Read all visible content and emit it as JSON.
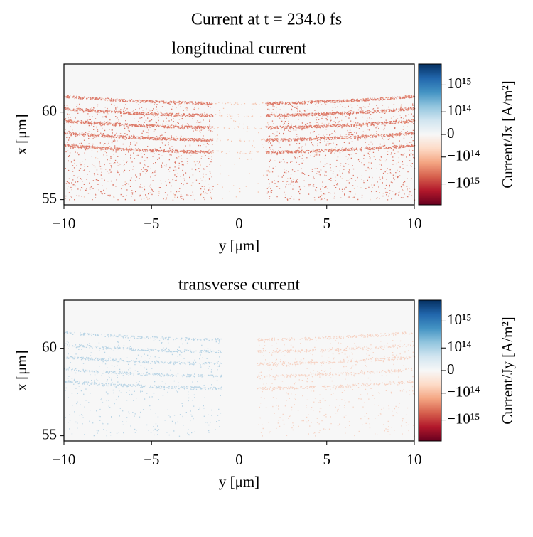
{
  "title": "Current at t = 234.0 fs",
  "chart_data": [
    {
      "type": "heatmap",
      "title": "longitudinal current",
      "xlabel": "y [μm]",
      "ylabel": "x [μm]",
      "xlim": [
        -10,
        10
      ],
      "xticks": [
        {
          "value": -10,
          "label": "−10"
        },
        {
          "value": -5,
          "label": "−5"
        },
        0,
        5,
        10
      ],
      "ylim": [
        54.7,
        62.75
      ],
      "yticks": [
        55,
        60
      ],
      "colormap": [
        "#67001f",
        "#b2182b",
        "#d6604d",
        "#f4a582",
        "#fddbc7",
        "#f7f7f7",
        "#d1e5f0",
        "#92c5de",
        "#4393c3",
        "#2166ac",
        "#053061"
      ],
      "colorbar": {
        "label": "Current/Jx [A/m²]",
        "scale": "symlog",
        "linthresh": 100000000000000.0,
        "lim": [
          -6000000000000000.0,
          6000000000000000.0
        ],
        "ticks": [
          {
            "value": -1000000000000000.0,
            "label": "−10¹⁵"
          },
          {
            "value": -100000000000000.0,
            "label": "−10¹⁴"
          },
          0,
          {
            "value": 100000000000000.0,
            "label": "10¹⁴"
          },
          {
            "value": 1000000000000000.0,
            "label": "10¹⁵"
          }
        ]
      }
    },
    {
      "type": "heatmap",
      "title": "transverse current",
      "xlabel": "y [μm]",
      "ylabel": "x [μm]",
      "xlim": [
        -10,
        10
      ],
      "xticks": [
        {
          "value": -10,
          "label": "−10"
        },
        {
          "value": -5,
          "label": "−5"
        },
        0,
        5,
        10
      ],
      "ylim": [
        54.7,
        62.75
      ],
      "yticks": [
        55,
        60
      ],
      "colormap": [
        "#67001f",
        "#b2182b",
        "#d6604d",
        "#f4a582",
        "#fddbc7",
        "#f7f7f7",
        "#d1e5f0",
        "#92c5de",
        "#4393c3",
        "#2166ac",
        "#053061"
      ],
      "colorbar": {
        "label": "Current/Jy [A/m²]",
        "scale": "symlog",
        "linthresh": 100000000000000.0,
        "lim": [
          -6000000000000000.0,
          6000000000000000.0
        ],
        "ticks": [
          {
            "value": -1000000000000000.0,
            "label": "−10¹⁵"
          },
          {
            "value": -100000000000000.0,
            "label": "−10¹⁴"
          },
          0,
          {
            "value": 100000000000000.0,
            "label": "10¹⁴"
          },
          {
            "value": 1000000000000000.0,
            "label": "10¹⁵"
          }
        ]
      }
    }
  ]
}
